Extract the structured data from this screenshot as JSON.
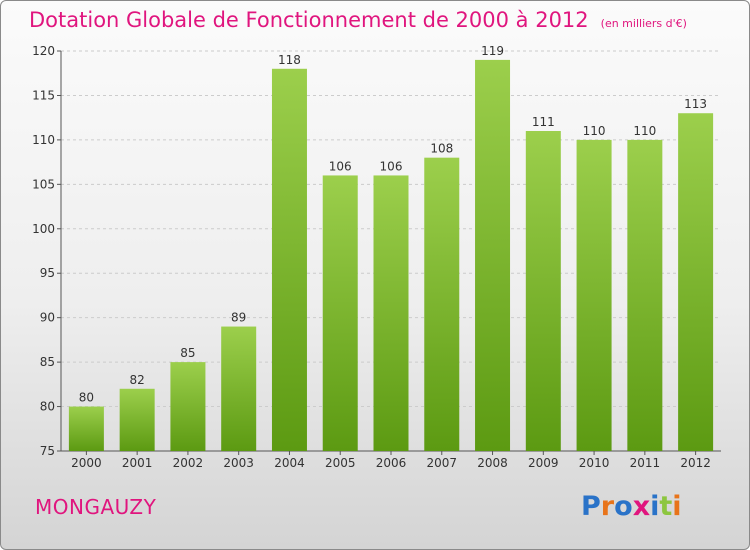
{
  "title": "Dotation Globale de Fonctionnement de 2000 à 2012",
  "subtitle": "(en milliers d'€)",
  "commune": "MONGAUZY",
  "logo": {
    "text": "Proxiti",
    "letter_colors": [
      "#2a73c8",
      "#e8741a",
      "#2a73c8",
      "#e0157e",
      "#2a73c8",
      "#8dc63f",
      "#e8741a"
    ]
  },
  "colors": {
    "title": "#e0157e",
    "bar_top": "#9ccf4c",
    "bar_bottom": "#5c9a12",
    "grid": "#cccccc"
  },
  "chart_data": {
    "type": "bar",
    "categories": [
      "2000",
      "2001",
      "2002",
      "2003",
      "2004",
      "2005",
      "2006",
      "2007",
      "2008",
      "2009",
      "2010",
      "2011",
      "2012"
    ],
    "values": [
      80,
      82,
      85,
      89,
      118,
      106,
      106,
      108,
      119,
      111,
      110,
      110,
      113
    ],
    "ylim": [
      75,
      120
    ],
    "yticks": [
      75,
      80,
      85,
      90,
      95,
      100,
      105,
      110,
      115,
      120
    ],
    "grid": true
  }
}
